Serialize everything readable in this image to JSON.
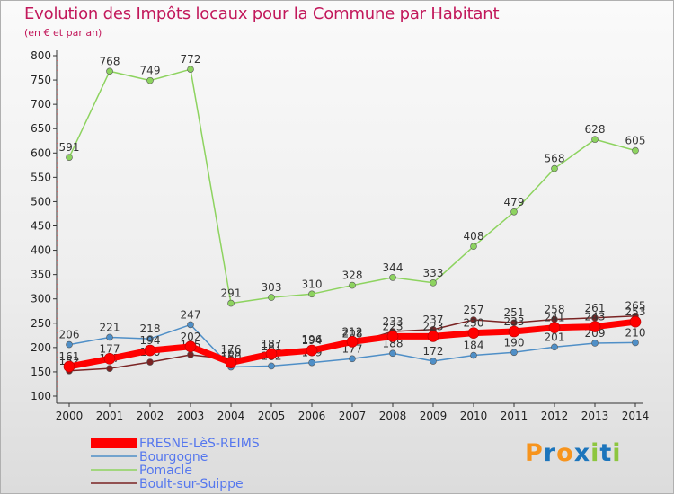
{
  "title": "Evolution des Impôts locaux pour la Commune par Habitant",
  "subtitle": "(en € et par an)",
  "logo_text": "Proxiti",
  "colors": {
    "title": "#c2185b",
    "legend_text": "#5577ee",
    "axis": "#333333"
  },
  "chart_data": {
    "type": "line",
    "title": "Evolution des Impôts locaux pour la Commune par Habitant",
    "subtitle": "(en € et par an)",
    "x": [
      "2000",
      "2001",
      "2002",
      "2003",
      "2004",
      "2005",
      "2006",
      "2007",
      "2008",
      "2009",
      "2010",
      "2011",
      "2012",
      "2013",
      "2014"
    ],
    "yticks": [
      100,
      150,
      200,
      250,
      300,
      350,
      400,
      450,
      500,
      550,
      600,
      650,
      700,
      750,
      800
    ],
    "ylim": [
      100,
      800
    ],
    "grid": false,
    "legend_position": "bottom-left",
    "series": [
      {
        "name": "FRESNE-LèS-REIMS",
        "color": "#ff0000",
        "values": [
          161,
          177,
          194,
          202,
          169,
          187,
          194,
          212,
          223,
          223,
          230,
          233,
          241,
          243,
          253
        ]
      },
      {
        "name": "Bourgogne",
        "color": "#4f8fc7",
        "values": [
          206,
          221,
          218,
          247,
          160,
          162,
          169,
          177,
          188,
          172,
          184,
          190,
          201,
          209,
          210
        ]
      },
      {
        "name": "Pomacle",
        "color": "#8dd35f",
        "values": [
          591,
          768,
          749,
          772,
          291,
          303,
          310,
          328,
          344,
          333,
          408,
          479,
          568,
          628,
          605
        ]
      },
      {
        "name": "Boult-sur-Suippe",
        "color": "#7a2323",
        "values": [
          152,
          157,
          170,
          185,
          176,
          181,
          196,
          208,
          233,
          237,
          257,
          251,
          258,
          261,
          265
        ]
      }
    ]
  }
}
